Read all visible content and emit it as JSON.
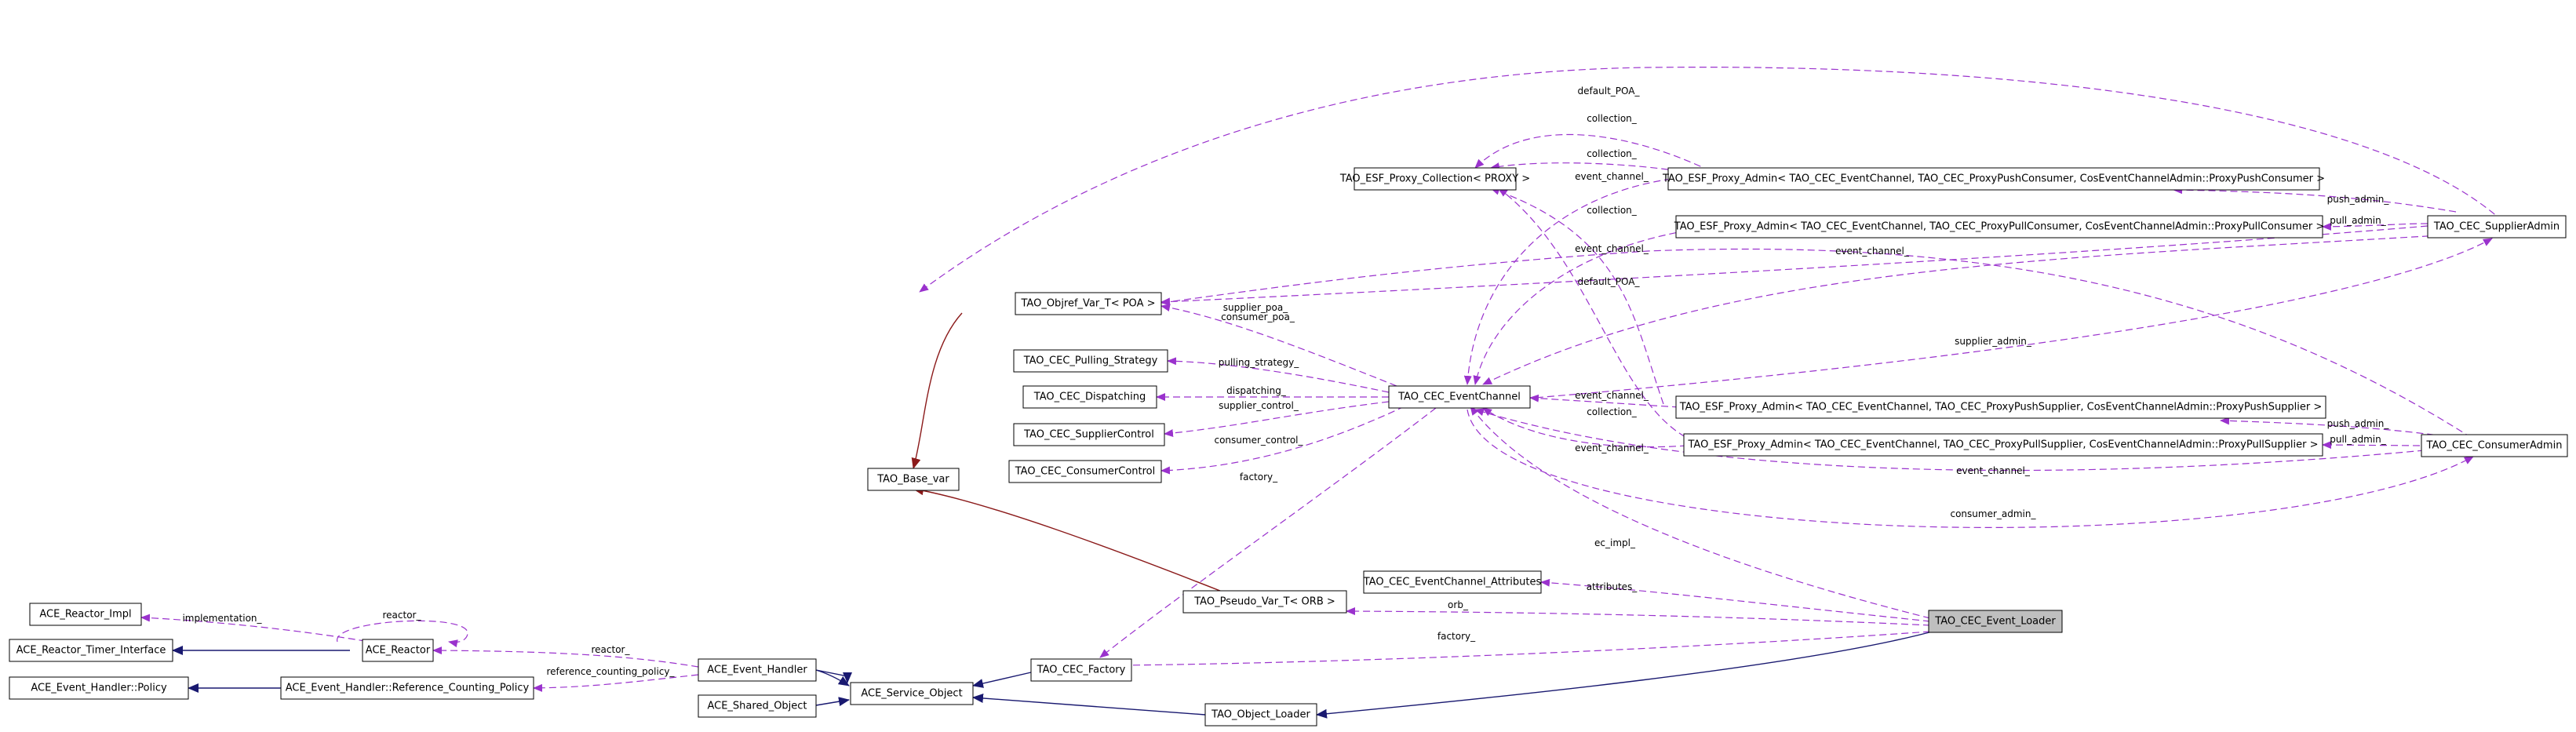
{
  "colors": {
    "usage_edge": "#9a32cd",
    "public_inheritance": "#191970",
    "template_instantiation": "#8b1a1a",
    "focus_fill": "#bfbfbf",
    "node_fill": "#ffffff"
  },
  "nodes": {
    "ace_reactor_impl": "ACE_Reactor_Impl",
    "ace_reactor_timer_interface": "ACE_Reactor_Timer_Interface",
    "ace_event_handler_policy": "ACE_Event_Handler::Policy",
    "ace_reactor": "ACE_Reactor",
    "ace_event_handler_rcp": "ACE_Event_Handler::Reference_Counting_Policy",
    "ace_event_handler": "ACE_Event_Handler",
    "ace_shared_object": "ACE_Shared_Object",
    "ace_service_object": "ACE_Service_Object",
    "tao_object_loader": "TAO_Object_Loader",
    "tao_base_var": "TAO_Base_var",
    "tao_objref_var_poa": "TAO_Objref_Var_T< POA >",
    "tao_pseudo_var_orb": "TAO_Pseudo_Var_T< ORB >",
    "tao_cec_pulling_strategy": "TAO_CEC_Pulling_Strategy",
    "tao_cec_dispatching": "TAO_CEC_Dispatching",
    "tao_cec_supplier_control": "TAO_CEC_SupplierControl",
    "tao_cec_consumer_control": "TAO_CEC_ConsumerControl",
    "tao_cec_factory": "TAO_CEC_Factory",
    "tao_cec_event_channel": "TAO_CEC_EventChannel",
    "tao_cec_event_channel_attributes": "TAO_CEC_EventChannel_Attributes",
    "tao_cec_event_loader": "TAO_CEC_Event_Loader",
    "tao_esf_proxy_collection": "TAO_ESF_Proxy_Collection< PROXY >",
    "proxy_admin_push_consumer": "TAO_ESF_Proxy_Admin< TAO_CEC_EventChannel, TAO_CEC_ProxyPushConsumer, CosEventChannelAdmin::ProxyPushConsumer >",
    "proxy_admin_pull_consumer": "TAO_ESF_Proxy_Admin< TAO_CEC_EventChannel, TAO_CEC_ProxyPullConsumer, CosEventChannelAdmin::ProxyPullConsumer >",
    "proxy_admin_push_supplier": "TAO_ESF_Proxy_Admin< TAO_CEC_EventChannel, TAO_CEC_ProxyPushSupplier, CosEventChannelAdmin::ProxyPushSupplier >",
    "proxy_admin_pull_supplier": "TAO_ESF_Proxy_Admin< TAO_CEC_EventChannel, TAO_CEC_ProxyPullSupplier, CosEventChannelAdmin::ProxyPullSupplier >",
    "tao_cec_supplier_admin": "TAO_CEC_SupplierAdmin",
    "tao_cec_consumer_admin": "TAO_CEC_ConsumerAdmin"
  },
  "edge_labels": {
    "implementation": "implementation_",
    "reactor_self": "reactor_",
    "reactor": "reactor_",
    "reference_counting_policy": "reference_counting_policy_",
    "default_poa_top": "default_POA_",
    "default_poa": "default_POA_",
    "supplier_poa": "supplier_poa_",
    "consumer_poa": "consumer_poa_",
    "pulling_strategy": "pulling_strategy_",
    "dispatching": "dispatching_",
    "supplier_control": "supplier_control_",
    "consumer_control": "consumer_control_",
    "factory": "factory_",
    "factory_loader": "factory_",
    "ec_impl": "ec_impl_",
    "attributes": "attributes_",
    "orb": "orb_",
    "collection_1": "collection_",
    "collection_2": "collection_",
    "collection_3": "collection_",
    "collection_4": "collection_",
    "event_channel_1": "event_channel_",
    "event_channel_2": "event_channel_",
    "event_channel_3": "event_channel_",
    "event_channel_4": "event_channel_",
    "event_channel_5": "event_channel_",
    "event_channel_6": "event_channel_",
    "push_admin_s": "push_admin_",
    "pull_admin_s": "pull_admin_",
    "push_admin_c": "push_admin_",
    "pull_admin_c": "pull_admin_",
    "supplier_admin": "supplier_admin_",
    "consumer_admin": "consumer_admin_"
  }
}
